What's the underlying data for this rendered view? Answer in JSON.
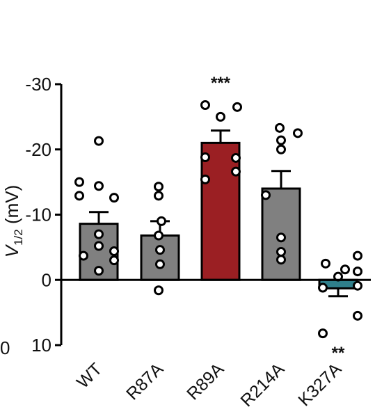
{
  "chart_data": {
    "type": "bar",
    "ylabel": {
      "main": "V",
      "sub": "1/2",
      "unit": " (mV)"
    },
    "y_inverted": true,
    "ylim": [
      -30,
      10
    ],
    "yticks": [
      {
        "value": -30,
        "label": "-30"
      },
      {
        "value": -20,
        "label": "-20"
      },
      {
        "value": -10,
        "label": "-10"
      },
      {
        "value": 0,
        "label": "0"
      },
      {
        "value": 10,
        "label": "10"
      }
    ],
    "categories": [
      "WT",
      "R87A",
      "R89A",
      "R214A",
      "K327A"
    ],
    "values": [
      -8.6,
      -6.8,
      -21.0,
      -14.0,
      1.3
    ],
    "errors": [
      1.8,
      2.2,
      1.9,
      2.7,
      1.2
    ],
    "colors": [
      "#808080",
      "#808080",
      "#9b1f23",
      "#808080",
      "#2f7f8b"
    ],
    "significance": [
      "",
      "",
      "***",
      "",
      "**"
    ],
    "points": [
      [
        -21.3,
        -15.0,
        -14.4,
        -12.9,
        -12.6,
        -7.0,
        -5.2,
        -4.4,
        -3.7,
        -3.0,
        -1.4
      ],
      [
        -14.3,
        -12.9,
        -9.0,
        -6.8,
        -4.6,
        -2.4,
        1.6
      ],
      [
        -26.8,
        -26.5,
        -25.0,
        -18.8,
        -18.7,
        -16.6,
        -15.4
      ],
      [
        -23.3,
        -22.5,
        -21.4,
        -20.0,
        -13.0,
        -6.5,
        -4.3,
        -3.1
      ],
      [
        -3.7,
        -2.5,
        -1.6,
        -1.3,
        -0.5,
        0.9,
        1.2,
        5.5,
        8.2
      ]
    ],
    "edge_text": "0"
  }
}
